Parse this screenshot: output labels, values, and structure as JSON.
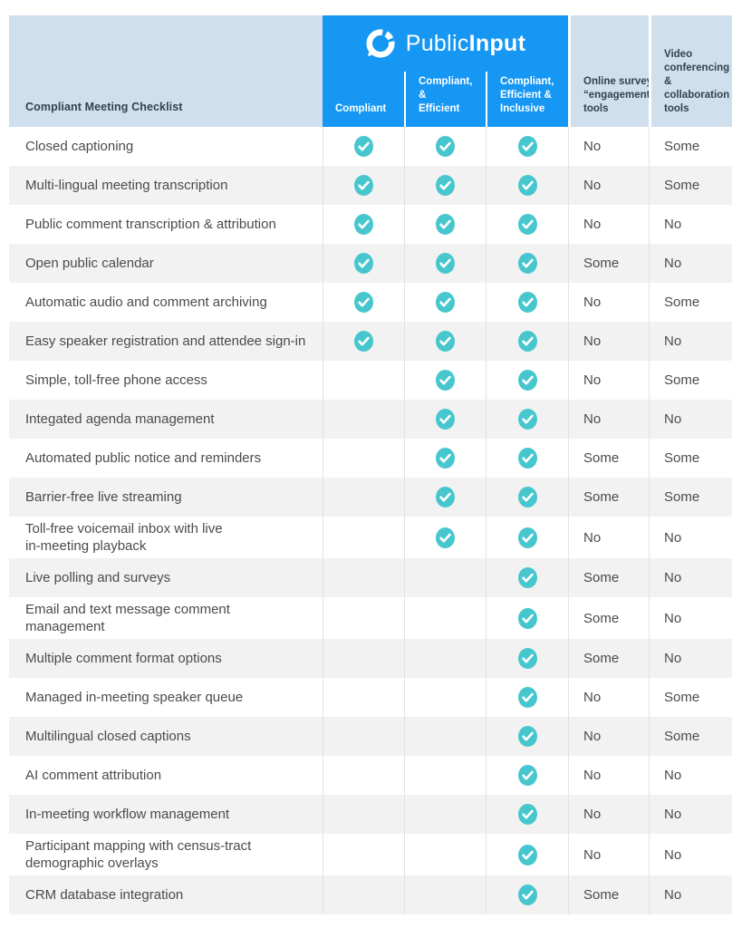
{
  "colors": {
    "brand_blue": "#1697f3",
    "header_light_blue": "#cfdfed",
    "check_teal": "#47c7cd",
    "alt_row_gray": "#f2f2f2",
    "divider_gray": "#e2e2e2",
    "header_dark_text": "#33424f",
    "row_text": "#4b4b4b"
  },
  "brand": {
    "word_regular": "Public",
    "word_bold": "Input"
  },
  "header": {
    "checklist_label": "Compliant Meeting Checklist",
    "product_columns": [
      "Compliant",
      "Compliant, &\nEfficient",
      "Compliant,\nEfficient &\nInclusive"
    ],
    "competitor_columns": [
      "Online survey\n“engagement”\ntools",
      "Video\nconferencing\n& collaboration\ntools"
    ]
  },
  "rows": [
    {
      "feature": "Closed captioning",
      "compliant": true,
      "efficient": true,
      "inclusive": true,
      "survey": "No",
      "video": "Some"
    },
    {
      "feature": "Multi-lingual meeting transcription",
      "compliant": true,
      "efficient": true,
      "inclusive": true,
      "survey": "No",
      "video": "Some"
    },
    {
      "feature": "Public comment transcription & attribution",
      "compliant": true,
      "efficient": true,
      "inclusive": true,
      "survey": "No",
      "video": "No"
    },
    {
      "feature": "Open public calendar",
      "compliant": true,
      "efficient": true,
      "inclusive": true,
      "survey": "Some",
      "video": "No"
    },
    {
      "feature": "Automatic audio and comment archiving",
      "compliant": true,
      "efficient": true,
      "inclusive": true,
      "survey": "No",
      "video": "Some"
    },
    {
      "feature": "Easy speaker registration and attendee sign-in",
      "compliant": true,
      "efficient": true,
      "inclusive": true,
      "survey": "No",
      "video": "No"
    },
    {
      "feature": "Simple, toll-free phone access",
      "compliant": false,
      "efficient": true,
      "inclusive": true,
      "survey": "No",
      "video": "Some"
    },
    {
      "feature": "Integated agenda management",
      "compliant": false,
      "efficient": true,
      "inclusive": true,
      "survey": "No",
      "video": "No"
    },
    {
      "feature": "Automated public notice and reminders",
      "compliant": false,
      "efficient": true,
      "inclusive": true,
      "survey": "Some",
      "video": "Some"
    },
    {
      "feature": "Barrier-free live streaming",
      "compliant": false,
      "efficient": true,
      "inclusive": true,
      "survey": "Some",
      "video": "Some"
    },
    {
      "feature": "Toll-free voicemail inbox with live\nin-meeting playback",
      "compliant": false,
      "efficient": true,
      "inclusive": true,
      "survey": "No",
      "video": "No"
    },
    {
      "feature": "Live polling and surveys",
      "compliant": false,
      "efficient": false,
      "inclusive": true,
      "survey": "Some",
      "video": "No"
    },
    {
      "feature": "Email and text message comment management",
      "compliant": false,
      "efficient": false,
      "inclusive": true,
      "survey": "Some",
      "video": "No"
    },
    {
      "feature": "Multiple comment format options",
      "compliant": false,
      "efficient": false,
      "inclusive": true,
      "survey": "Some",
      "video": "No"
    },
    {
      "feature": "Managed in-meeting speaker queue",
      "compliant": false,
      "efficient": false,
      "inclusive": true,
      "survey": "No",
      "video": "Some"
    },
    {
      "feature": "Multilingual closed captions",
      "compliant": false,
      "efficient": false,
      "inclusive": true,
      "survey": "No",
      "video": "Some"
    },
    {
      "feature": "AI comment attribution",
      "compliant": false,
      "efficient": false,
      "inclusive": true,
      "survey": "No",
      "video": "No"
    },
    {
      "feature": "In-meeting workflow management",
      "compliant": false,
      "efficient": false,
      "inclusive": true,
      "survey": "No",
      "video": "No"
    },
    {
      "feature": "Participant mapping with census-tract\ndemographic overlays",
      "compliant": false,
      "efficient": false,
      "inclusive": true,
      "survey": "No",
      "video": "No"
    },
    {
      "feature": "CRM database integration",
      "compliant": false,
      "efficient": false,
      "inclusive": true,
      "survey": "Some",
      "video": "No"
    }
  ]
}
